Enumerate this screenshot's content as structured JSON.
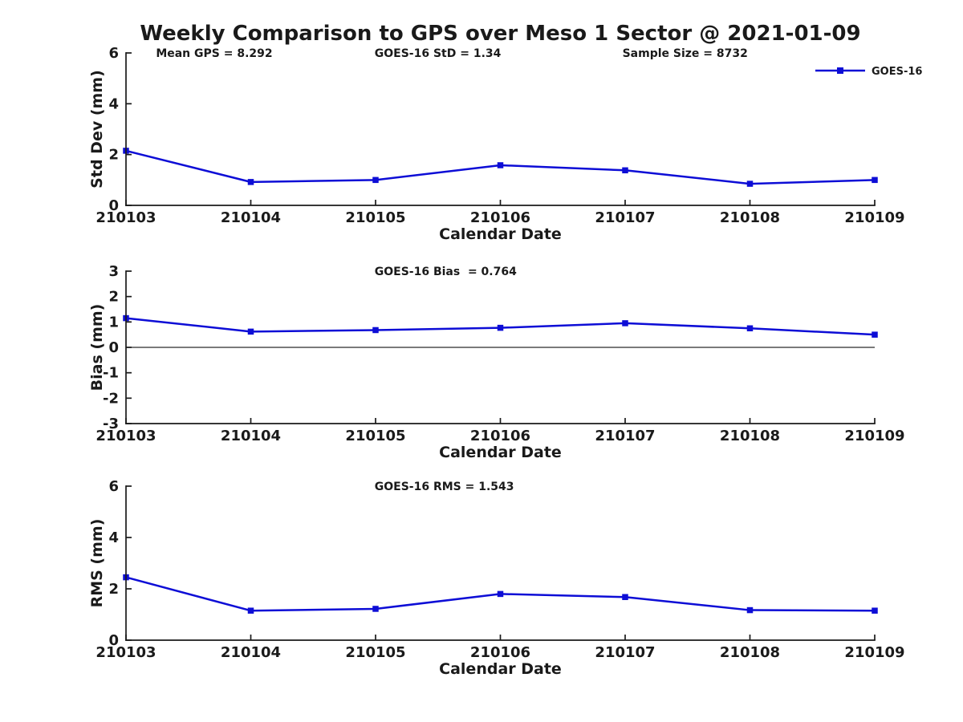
{
  "title": "Weekly Comparison to GPS over Meso 1 Sector @ 2021-01-09",
  "style": {
    "series_color": "#0d0dd6",
    "text_color": "#1a1a1a",
    "axis_color": "#1a1a1a",
    "zero_line_color": "#2b2b2b",
    "background": "#ffffff"
  },
  "chart_data": [
    {
      "name": "std-dev",
      "type": "line",
      "ylabel": "Std Dev (mm)",
      "xlabel": "Calendar Date",
      "ylim": [
        0,
        6
      ],
      "yticks": [
        0,
        2,
        4,
        6
      ],
      "categories": [
        "210103",
        "210104",
        "210105",
        "210106",
        "210107",
        "210108",
        "210109"
      ],
      "series": [
        {
          "name": "GOES-16",
          "values": [
            2.15,
            0.92,
            1.0,
            1.58,
            1.38,
            0.85,
            1.0
          ]
        }
      ],
      "annotations": [
        {
          "text": "Mean GPS = 8.292",
          "xfrac": 0.04
        },
        {
          "text": "GOES-16 StD = 1.34",
          "xfrac": 0.332
        },
        {
          "text": "Sample Size = 8732",
          "xfrac": 0.663
        }
      ],
      "legend": {
        "label": "GOES-16",
        "position": "top-right"
      },
      "zero_line": false,
      "grid": false
    },
    {
      "name": "bias",
      "type": "line",
      "ylabel": "Bias (mm)",
      "xlabel": "Calendar Date",
      "ylim": [
        -3,
        3
      ],
      "yticks": [
        -3,
        -2,
        -1,
        0,
        1,
        2,
        3
      ],
      "categories": [
        "210103",
        "210104",
        "210105",
        "210106",
        "210107",
        "210108",
        "210109"
      ],
      "series": [
        {
          "name": "GOES-16",
          "values": [
            1.15,
            0.62,
            0.68,
            0.77,
            0.95,
            0.75,
            0.5
          ]
        }
      ],
      "annotations": [
        {
          "text": "GOES-16 Bias  = 0.764",
          "xfrac": 0.332
        }
      ],
      "zero_line": true,
      "grid": false
    },
    {
      "name": "rms",
      "type": "line",
      "ylabel": "RMS (mm)",
      "xlabel": "Calendar Date",
      "ylim": [
        0,
        6
      ],
      "yticks": [
        0,
        2,
        4,
        6
      ],
      "categories": [
        "210103",
        "210104",
        "210105",
        "210106",
        "210107",
        "210108",
        "210109"
      ],
      "series": [
        {
          "name": "GOES-16",
          "values": [
            2.45,
            1.15,
            1.22,
            1.8,
            1.68,
            1.17,
            1.15
          ]
        }
      ],
      "annotations": [
        {
          "text": "GOES-16 RMS = 1.543",
          "xfrac": 0.332
        }
      ],
      "zero_line": false,
      "grid": false
    }
  ]
}
